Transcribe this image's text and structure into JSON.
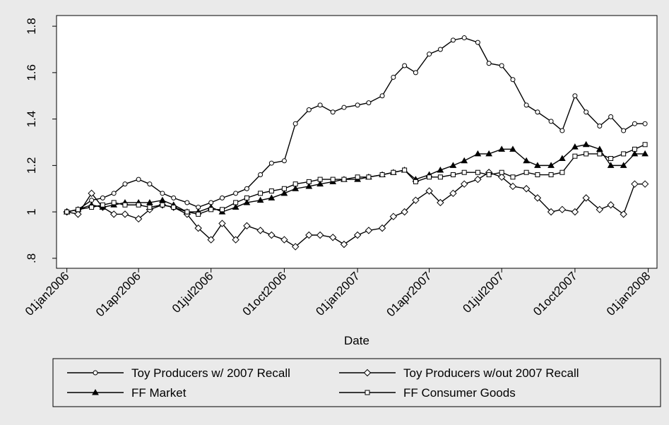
{
  "chart_data": {
    "type": "line",
    "x_label": "Date",
    "x": [
      "2006-01-01",
      "2006-01-15",
      "2006-02-01",
      "2006-02-15",
      "2006-03-01",
      "2006-03-15",
      "2006-04-01",
      "2006-04-15",
      "2006-05-01",
      "2006-05-15",
      "2006-06-01",
      "2006-06-15",
      "2006-07-01",
      "2006-07-15",
      "2006-08-01",
      "2006-08-15",
      "2006-09-01",
      "2006-09-15",
      "2006-10-01",
      "2006-10-15",
      "2006-11-01",
      "2006-11-15",
      "2006-12-01",
      "2006-12-15",
      "2007-01-01",
      "2007-01-15",
      "2007-02-01",
      "2007-02-15",
      "2007-03-01",
      "2007-03-15",
      "2007-04-01",
      "2007-04-15",
      "2007-05-01",
      "2007-05-15",
      "2007-06-01",
      "2007-06-15",
      "2007-07-01",
      "2007-07-15",
      "2007-08-01",
      "2007-08-15",
      "2007-09-01",
      "2007-09-15",
      "2007-10-01",
      "2007-10-15",
      "2007-11-01",
      "2007-11-15",
      "2007-12-01",
      "2007-12-15",
      "2007-12-28"
    ],
    "series": [
      {
        "name": "Toy Producers w/ 2007 Recall",
        "color": "#000000",
        "marker": "circle",
        "values": [
          1.0,
          1.01,
          1.05,
          1.06,
          1.08,
          1.12,
          1.14,
          1.12,
          1.08,
          1.06,
          1.04,
          1.02,
          1.04,
          1.06,
          1.08,
          1.1,
          1.16,
          1.21,
          1.22,
          1.38,
          1.44,
          1.46,
          1.43,
          1.45,
          1.46,
          1.47,
          1.5,
          1.58,
          1.63,
          1.6,
          1.68,
          1.7,
          1.74,
          1.75,
          1.73,
          1.64,
          1.63,
          1.57,
          1.46,
          1.43,
          1.39,
          1.35,
          1.5,
          1.43,
          1.37,
          1.41,
          1.35,
          1.38,
          1.38
        ]
      },
      {
        "name": "Toy Producers w/out 2007 Recall",
        "color": "#000000",
        "marker": "diamond",
        "values": [
          1.0,
          0.99,
          1.08,
          1.02,
          0.99,
          0.99,
          0.97,
          1.01,
          1.03,
          1.02,
          0.99,
          0.93,
          0.88,
          0.95,
          0.88,
          0.94,
          0.92,
          0.9,
          0.88,
          0.85,
          0.9,
          0.9,
          0.89,
          0.86,
          0.9,
          0.92,
          0.93,
          0.98,
          1.0,
          1.05,
          1.09,
          1.04,
          1.08,
          1.12,
          1.14,
          1.17,
          1.15,
          1.11,
          1.1,
          1.06,
          1.0,
          1.01,
          1.0,
          1.06,
          1.01,
          1.03,
          0.99,
          1.12,
          1.12
        ]
      },
      {
        "name": "FF Market",
        "color": "#000000",
        "marker": "triangle",
        "values": [
          1.0,
          1.01,
          1.03,
          1.02,
          1.03,
          1.04,
          1.04,
          1.04,
          1.05,
          1.03,
          1.0,
          1.0,
          1.02,
          1.0,
          1.02,
          1.04,
          1.05,
          1.06,
          1.08,
          1.1,
          1.11,
          1.12,
          1.13,
          1.14,
          1.14,
          1.15,
          1.16,
          1.17,
          1.18,
          1.14,
          1.16,
          1.18,
          1.2,
          1.22,
          1.25,
          1.25,
          1.27,
          1.27,
          1.22,
          1.2,
          1.2,
          1.23,
          1.28,
          1.29,
          1.27,
          1.2,
          1.2,
          1.25,
          1.25
        ]
      },
      {
        "name": "FF Consumer Goods",
        "color": "#000000",
        "marker": "square",
        "values": [
          1.0,
          1.01,
          1.02,
          1.03,
          1.04,
          1.03,
          1.03,
          1.02,
          1.03,
          1.02,
          1.0,
          0.99,
          1.01,
          1.01,
          1.04,
          1.06,
          1.08,
          1.09,
          1.1,
          1.12,
          1.13,
          1.14,
          1.14,
          1.14,
          1.15,
          1.15,
          1.16,
          1.17,
          1.18,
          1.13,
          1.15,
          1.15,
          1.16,
          1.17,
          1.17,
          1.16,
          1.17,
          1.15,
          1.17,
          1.16,
          1.16,
          1.17,
          1.24,
          1.25,
          1.25,
          1.23,
          1.25,
          1.27,
          1.29
        ]
      }
    ],
    "xlim": [
      "2005-12-19",
      "2008-01-12"
    ],
    "xticks": [
      {
        "value": "2006-01-01",
        "label": "01jan2006"
      },
      {
        "value": "2006-04-01",
        "label": "01apr2006"
      },
      {
        "value": "2006-07-01",
        "label": "01jul2006"
      },
      {
        "value": "2006-10-01",
        "label": "01oct2006"
      },
      {
        "value": "2007-01-01",
        "label": "01jan2007"
      },
      {
        "value": "2007-04-01",
        "label": "01apr2007"
      },
      {
        "value": "2007-07-01",
        "label": "01jul2007"
      },
      {
        "value": "2007-10-01",
        "label": "01oct2007"
      },
      {
        "value": "2008-01-01",
        "label": "01jan2008"
      }
    ],
    "ylim": [
      0.757,
      1.846
    ],
    "yticks": [
      {
        "value": 0.8,
        "label": ".8"
      },
      1,
      1.2,
      1.4,
      1.6,
      1.8
    ],
    "grid": false,
    "legend": "bottom"
  }
}
